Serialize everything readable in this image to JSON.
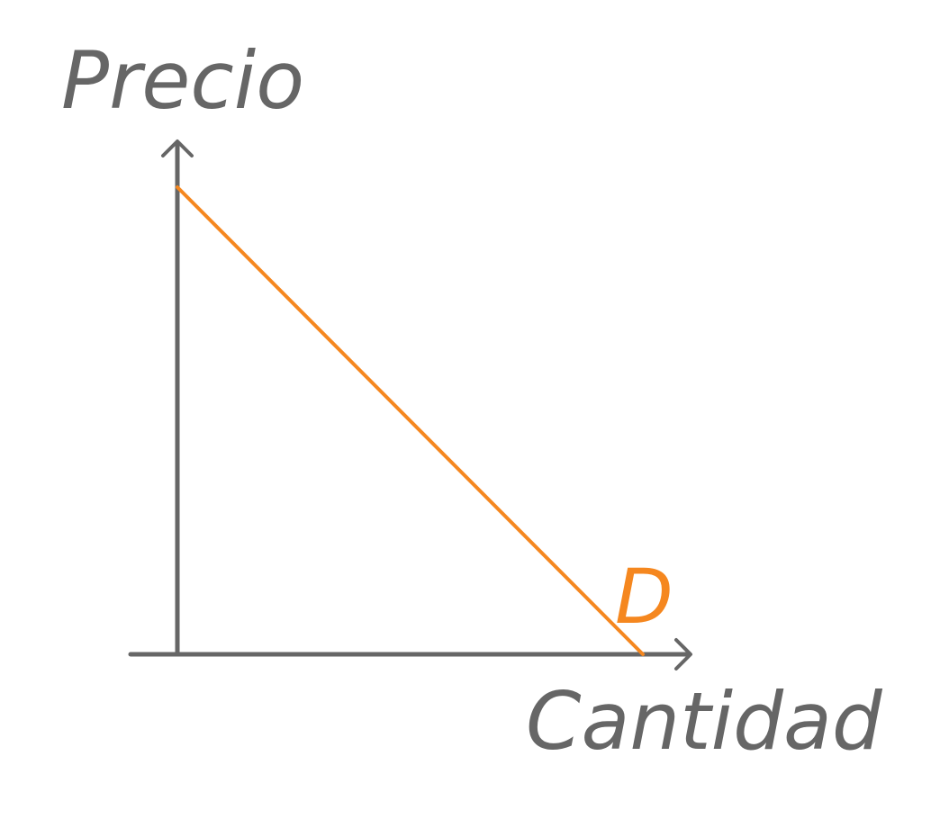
{
  "diagram": {
    "y_axis_label": "Precio",
    "x_axis_label": "Cantidad",
    "curve": {
      "label": "D",
      "meaning": "demand",
      "slope": "downward"
    }
  },
  "colors": {
    "axis": "#666666",
    "curve": "#F5871F",
    "background": "#FFFFFF"
  }
}
